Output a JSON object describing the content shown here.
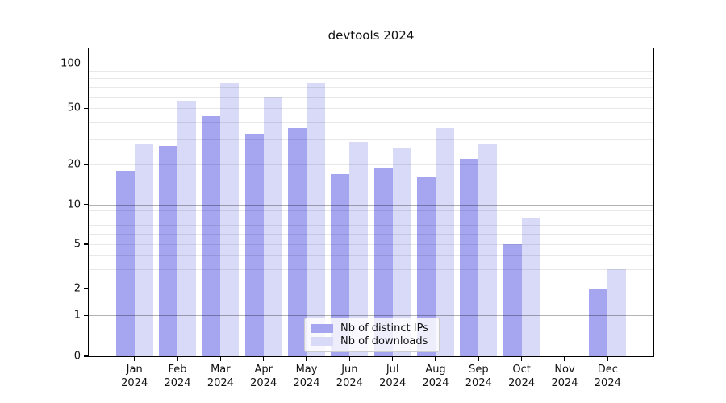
{
  "chart_data": {
    "type": "bar",
    "title": "devtools 2024",
    "categories": [
      "Jan",
      "Feb",
      "Mar",
      "Apr",
      "May",
      "Jun",
      "Jul",
      "Aug",
      "Sep",
      "Oct",
      "Nov",
      "Dec"
    ],
    "year": "2024",
    "series": [
      {
        "name": "Nb of distinct IPs",
        "color": "#a5a5f0",
        "values": [
          18,
          27,
          44,
          33,
          36,
          17,
          19,
          16,
          22,
          5,
          0,
          2
        ]
      },
      {
        "name": "Nb of downloads",
        "color": "#d9daf7",
        "values": [
          28,
          56,
          74,
          60,
          74,
          29,
          26,
          36,
          28,
          8,
          0,
          3
        ]
      }
    ],
    "xlabel": "",
    "ylabel": "",
    "yscale": "symlog",
    "ylim": [
      0,
      128
    ],
    "yticks": [
      0,
      1,
      2,
      5,
      10,
      20,
      50,
      100
    ],
    "ytick_labels": [
      "0",
      "1",
      "2",
      "5",
      "10",
      "20",
      "50",
      "100"
    ],
    "major_grid_ticks": [
      1,
      10,
      100
    ],
    "light_grid_ticks": [
      2,
      5,
      20,
      50
    ],
    "minor_grid_ticks": [
      3,
      4,
      6,
      7,
      8,
      9,
      30,
      40,
      60,
      70,
      80,
      90
    ],
    "grid": true,
    "legend_position": "lower center"
  }
}
